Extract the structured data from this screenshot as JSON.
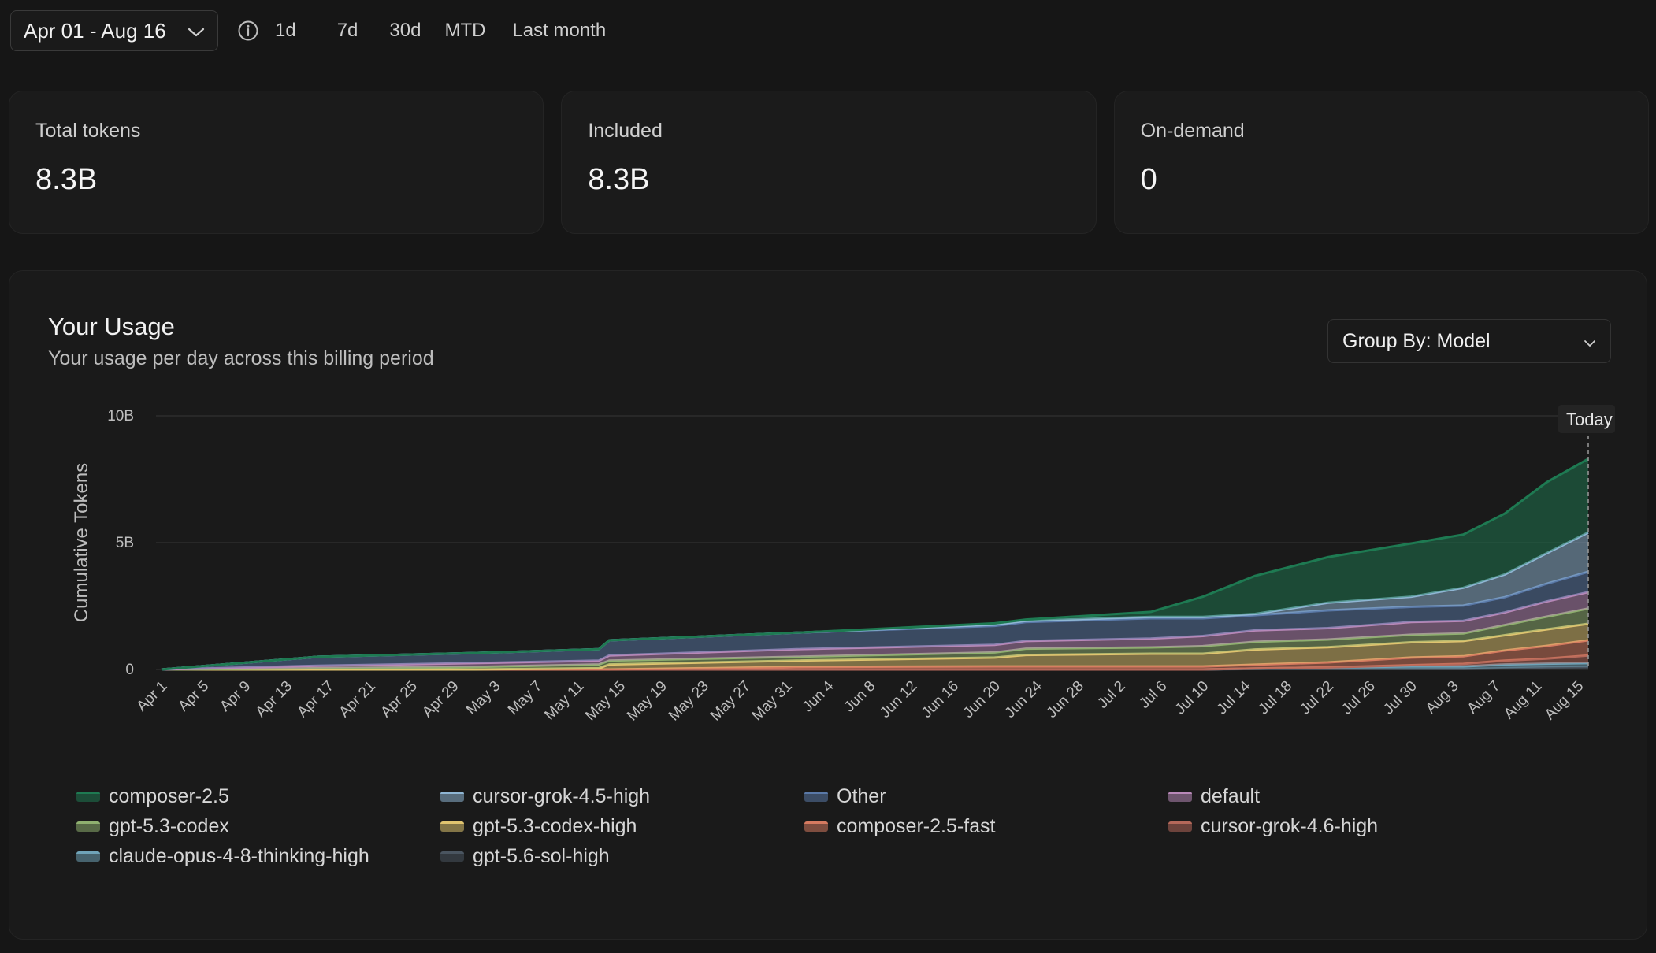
{
  "filters": {
    "date_range": "Apr 01 - Aug 16",
    "ranges": [
      "1d",
      "7d",
      "30d",
      "MTD",
      "Last month"
    ]
  },
  "stats": [
    {
      "label": "Total tokens",
      "value": "8.3B"
    },
    {
      "label": "Included",
      "value": "8.3B"
    },
    {
      "label": "On-demand",
      "value": "0"
    }
  ],
  "usage": {
    "title": "Your Usage",
    "subtitle": "Your usage per day across this billing period",
    "group_by": "Group By: Model"
  },
  "colors": {
    "background": "#161616",
    "card": "#1b1b1b"
  },
  "chart_data": {
    "type": "area",
    "stacked": true,
    "ylabel": "Cumulative Tokens",
    "ylim": [
      0,
      10
    ],
    "y_unit": "B",
    "y_ticks": [
      {
        "value": 0,
        "label": "0"
      },
      {
        "value": 5,
        "label": "5B"
      },
      {
        "value": 10,
        "label": "10B"
      }
    ],
    "x_tick_labels": [
      "Apr 1",
      "Apr 5",
      "Apr 9",
      "Apr 13",
      "Apr 17",
      "Apr 21",
      "Apr 25",
      "Apr 29",
      "May 3",
      "May 7",
      "May 11",
      "May 15",
      "May 19",
      "May 23",
      "May 27",
      "May 31",
      "Jun 4",
      "Jun 8",
      "Jun 12",
      "Jun 16",
      "Jun 20",
      "Jun 24",
      "Jun 28",
      "Jul 2",
      "Jul 6",
      "Jul 10",
      "Jul 14",
      "Jul 18",
      "Jul 22",
      "Jul 26",
      "Jul 30",
      "Aug 3",
      "Aug 7",
      "Aug 11",
      "Aug 15"
    ],
    "x_dates": [
      "Apr 1",
      "Apr 16",
      "May 1",
      "May 13",
      "May 14",
      "Jun 1",
      "Jun 20",
      "Jun 23",
      "Jul 5",
      "Jul 10",
      "Jul 15",
      "Jul 22",
      "Jul 30",
      "Aug 4",
      "Aug 8",
      "Aug 12",
      "Aug 16"
    ],
    "series_stack_order": "bottom to top",
    "series": [
      {
        "name": "gpt-5.6-sol-high",
        "color": "#4a5560",
        "values": [
          0,
          0,
          0,
          0,
          0,
          0,
          0,
          0,
          0,
          0,
          0.02,
          0.02,
          0.02,
          0.02,
          0.05,
          0.08,
          0.1
        ]
      },
      {
        "name": "claude-opus-4-8-thinking-high",
        "color": "#6fa3b8",
        "values": [
          0,
          0,
          0,
          0,
          0,
          0,
          0,
          0,
          0,
          0,
          0.02,
          0.06,
          0.1,
          0.1,
          0.15,
          0.15,
          0.15
        ]
      },
      {
        "name": "cursor-grok-4.6-high",
        "color": "#b5685a",
        "values": [
          0,
          0,
          0,
          0,
          0,
          0,
          0,
          0,
          0,
          0,
          0,
          0,
          0.05,
          0.1,
          0.15,
          0.2,
          0.3
        ]
      },
      {
        "name": "composer-2.5-fast",
        "color": "#d67a60",
        "values": [
          0,
          0,
          0,
          0,
          0,
          0.1,
          0.12,
          0.12,
          0.12,
          0.12,
          0.15,
          0.2,
          0.3,
          0.3,
          0.4,
          0.5,
          0.6
        ]
      },
      {
        "name": "gpt-5.3-codex-high",
        "color": "#e0c46f",
        "values": [
          0,
          0,
          0,
          0.05,
          0.2,
          0.25,
          0.35,
          0.45,
          0.5,
          0.5,
          0.6,
          0.6,
          0.6,
          0.6,
          0.6,
          0.65,
          0.65
        ]
      },
      {
        "name": "gpt-5.3-codex",
        "color": "#8fb06f",
        "values": [
          0,
          0.05,
          0.1,
          0.15,
          0.15,
          0.15,
          0.2,
          0.25,
          0.25,
          0.3,
          0.3,
          0.3,
          0.3,
          0.3,
          0.4,
          0.5,
          0.6
        ]
      },
      {
        "name": "default",
        "color": "#b888b8",
        "values": [
          0,
          0.1,
          0.15,
          0.15,
          0.2,
          0.3,
          0.3,
          0.3,
          0.35,
          0.4,
          0.45,
          0.45,
          0.5,
          0.5,
          0.5,
          0.6,
          0.65
        ]
      },
      {
        "name": "Other",
        "color": "#5a79a8",
        "values": [
          0,
          0.35,
          0.4,
          0.45,
          0.6,
          0.65,
          0.75,
          0.75,
          0.8,
          0.7,
          0.6,
          0.7,
          0.6,
          0.6,
          0.6,
          0.7,
          0.8
        ]
      },
      {
        "name": "cursor-grok-4.5-high",
        "color": "#8fb6d4",
        "values": [
          0,
          0,
          0,
          0,
          0,
          0,
          0.05,
          0.05,
          0.05,
          0.05,
          0.05,
          0.3,
          0.4,
          0.7,
          0.9,
          1.2,
          1.55
        ]
      },
      {
        "name": "composer-2.5",
        "color": "#1e7a52",
        "values": [
          0,
          0,
          0,
          0,
          0,
          0,
          0.05,
          0.05,
          0.2,
          0.8,
          1.5,
          1.8,
          2.1,
          2.1,
          2.4,
          2.8,
          2.9
        ]
      }
    ],
    "legend_order": [
      "composer-2.5",
      "cursor-grok-4.5-high",
      "Other",
      "default",
      "gpt-5.3-codex",
      "gpt-5.3-codex-high",
      "composer-2.5-fast",
      "cursor-grok-4.6-high",
      "claude-opus-4-8-thinking-high",
      "gpt-5.6-sol-high"
    ],
    "marker": {
      "label": "Today",
      "x": "Aug 16"
    },
    "grid": true,
    "legend_position": "bottom"
  }
}
